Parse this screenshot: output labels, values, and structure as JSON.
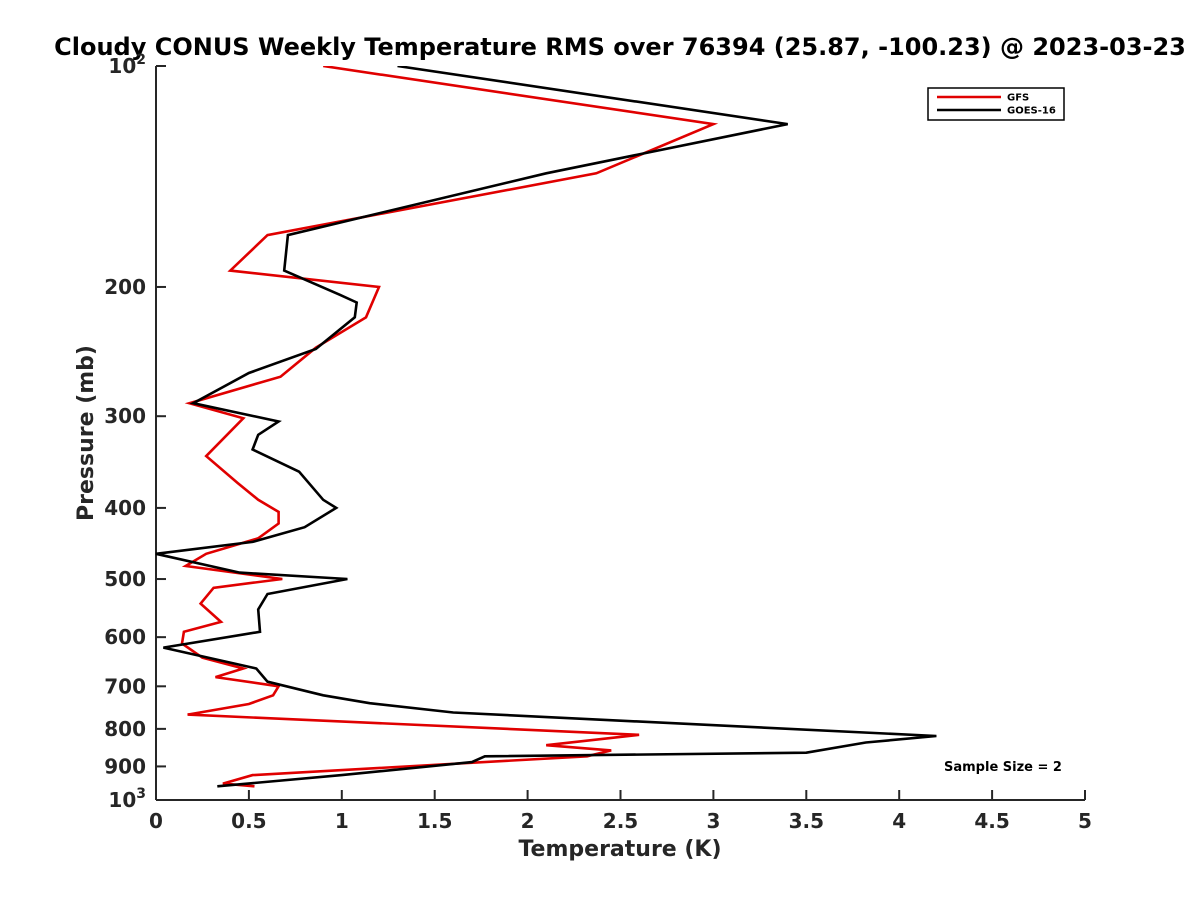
{
  "chart_data": {
    "type": "line",
    "title": "Cloudy CONUS Weekly Temperature RMS over 76394 (25.87, -100.23) @ 2023-03-23",
    "xlabel": "Temperature (K)",
    "ylabel": "Pressure (mb)",
    "xlim": [
      0,
      5
    ],
    "ylim": [
      100,
      1000
    ],
    "y_scale": "log",
    "y_reversed": true,
    "grid": false,
    "legend_position": "top-right",
    "x_ticks": [
      "0",
      "0.5",
      "1",
      "1.5",
      "2",
      "2.5",
      "3",
      "3.5",
      "4",
      "4.5",
      "5"
    ],
    "y_ticks": [
      {
        "value": 100,
        "label": "10",
        "sup": "2"
      },
      {
        "value": 200,
        "label": "200"
      },
      {
        "value": 300,
        "label": "300"
      },
      {
        "value": 400,
        "label": "400"
      },
      {
        "value": 500,
        "label": "500"
      },
      {
        "value": 600,
        "label": "600"
      },
      {
        "value": 700,
        "label": "700"
      },
      {
        "value": 800,
        "label": "800"
      },
      {
        "value": 900,
        "label": "900"
      },
      {
        "value": 1000,
        "label": "10",
        "sup": "3"
      }
    ],
    "annotation": "Sample Size = 2",
    "series": [
      {
        "name": "GFS",
        "color": "#e00000",
        "points": [
          [
            0.9,
            100
          ],
          [
            3.0,
            120
          ],
          [
            2.37,
            140
          ],
          [
            0.6,
            170
          ],
          [
            0.4,
            190
          ],
          [
            1.2,
            200
          ],
          [
            1.13,
            220
          ],
          [
            0.86,
            242
          ],
          [
            0.67,
            265
          ],
          [
            0.18,
            288
          ],
          [
            0.47,
            302
          ],
          [
            0.27,
            340
          ],
          [
            0.44,
            370
          ],
          [
            0.55,
            390
          ],
          [
            0.66,
            405
          ],
          [
            0.66,
            420
          ],
          [
            0.55,
            440
          ],
          [
            0.27,
            462
          ],
          [
            0.16,
            480
          ],
          [
            0.68,
            500
          ],
          [
            0.31,
            514
          ],
          [
            0.24,
            540
          ],
          [
            0.35,
            572
          ],
          [
            0.15,
            590
          ],
          [
            0.14,
            612
          ],
          [
            0.25,
            640
          ],
          [
            0.47,
            662
          ],
          [
            0.32,
            680
          ],
          [
            0.66,
            700
          ],
          [
            0.63,
            720
          ],
          [
            0.5,
            740
          ],
          [
            0.17,
            765
          ],
          [
            2.6,
            815
          ],
          [
            2.1,
            842
          ],
          [
            2.45,
            856
          ],
          [
            2.32,
            872
          ],
          [
            0.52,
            925
          ],
          [
            0.36,
            950
          ],
          [
            0.53,
            958
          ]
        ]
      },
      {
        "name": "GOES-16",
        "color": "#000000",
        "points": [
          [
            1.3,
            100
          ],
          [
            3.4,
            120
          ],
          [
            2.1,
            140
          ],
          [
            0.71,
            170
          ],
          [
            0.69,
            190
          ],
          [
            0.99,
            205
          ],
          [
            1.08,
            210
          ],
          [
            1.07,
            220
          ],
          [
            0.86,
            243
          ],
          [
            0.5,
            262
          ],
          [
            0.2,
            288
          ],
          [
            0.66,
            305
          ],
          [
            0.55,
            318
          ],
          [
            0.52,
            333
          ],
          [
            0.77,
            357
          ],
          [
            0.9,
            390
          ],
          [
            0.97,
            400
          ],
          [
            0.8,
            425
          ],
          [
            0.52,
            445
          ],
          [
            0.0,
            462
          ],
          [
            0.45,
            490
          ],
          [
            1.03,
            500
          ],
          [
            0.6,
            524
          ],
          [
            0.55,
            550
          ],
          [
            0.56,
            590
          ],
          [
            0.04,
            620
          ],
          [
            0.54,
            662
          ],
          [
            0.6,
            690
          ],
          [
            0.9,
            720
          ],
          [
            1.15,
            738
          ],
          [
            1.6,
            760
          ],
          [
            4.2,
            818
          ],
          [
            3.82,
            835
          ],
          [
            3.5,
            862
          ],
          [
            1.77,
            872
          ],
          [
            1.7,
            888
          ],
          [
            1.0,
            925
          ],
          [
            0.33,
            958
          ]
        ]
      }
    ]
  }
}
